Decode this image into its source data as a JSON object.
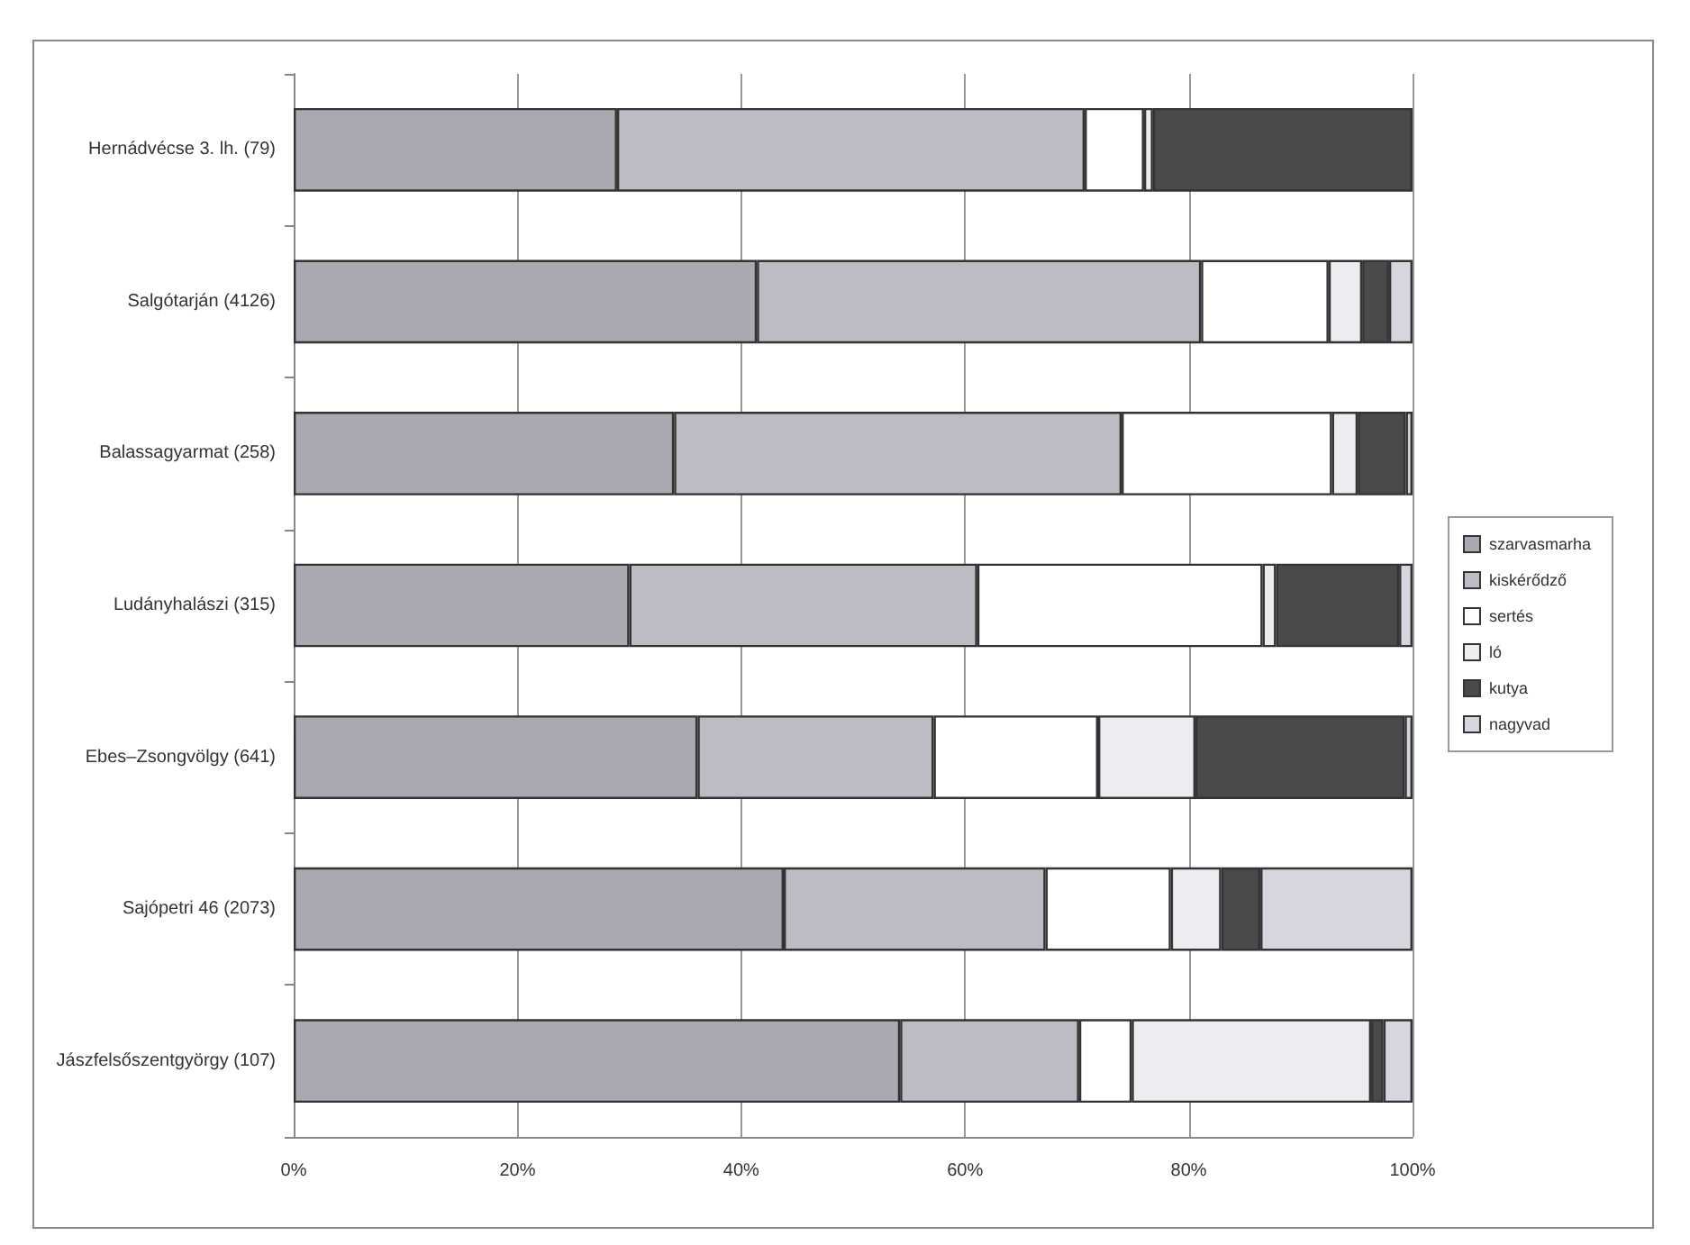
{
  "chart_data": {
    "type": "bar",
    "orientation": "horizontal",
    "stacked": true,
    "categories": [
      "Hernádvécse 3. lh. (79)",
      "Salgótarján (4126)",
      "Balassagyarmat (258)",
      "Ludányhalászi (315)",
      "Ebes–Zsongvölgy (641)",
      "Sajópetri 46 (2073)",
      "Jászfelsőszentgyörgy (107)"
    ],
    "series": [
      {
        "name": "szarvasmarha",
        "color": "#a9a9b1",
        "values": [
          28.9,
          41.4,
          34.0,
          30.0,
          36.1,
          43.8,
          54.2
        ]
      },
      {
        "name": "kiskérődző",
        "color": "#bcbcc4",
        "values": [
          41.8,
          39.7,
          40.0,
          31.1,
          21.1,
          23.4,
          16.0
        ]
      },
      {
        "name": "sertés",
        "color": "#ffffff",
        "values": [
          5.3,
          11.4,
          18.8,
          25.5,
          14.7,
          11.2,
          4.7
        ]
      },
      {
        "name": "ló",
        "color": "#ededf1",
        "values": [
          0.8,
          3.0,
          2.3,
          1.2,
          8.7,
          4.5,
          21.4
        ]
      },
      {
        "name": "kutya",
        "color": "#4a4a4c",
        "values": [
          23.2,
          2.4,
          4.3,
          11.0,
          18.7,
          3.5,
          1.1
        ]
      },
      {
        "name": "nagyvad",
        "color": "#d6d6de",
        "values": [
          0,
          2.1,
          0.6,
          1.2,
          0.7,
          13.6,
          2.6
        ]
      }
    ],
    "xlim": [
      0,
      100
    ],
    "xticks": [
      {
        "value": 0,
        "label": "0%"
      },
      {
        "value": 20,
        "label": "20%"
      },
      {
        "value": 40,
        "label": "40%"
      },
      {
        "value": 60,
        "label": "60%"
      },
      {
        "value": 80,
        "label": "80%"
      },
      {
        "value": 100,
        "label": "100%"
      }
    ],
    "grid": "x",
    "legend": "right"
  }
}
